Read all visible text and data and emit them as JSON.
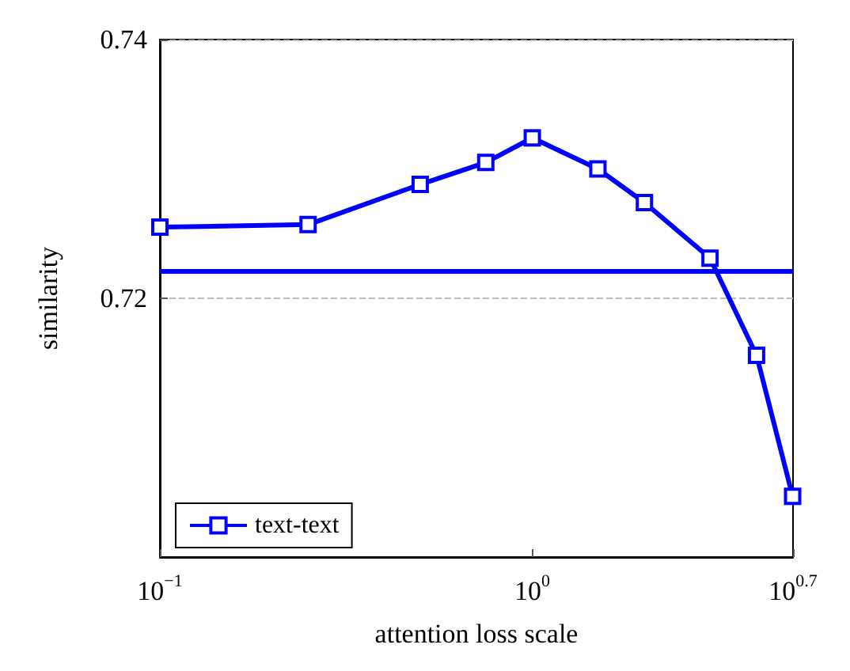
{
  "chart_data": {
    "type": "line",
    "xlabel": "attention loss scale",
    "ylabel": "similarity",
    "x": [
      0.1,
      0.25,
      0.5,
      0.75,
      1,
      1.5,
      2,
      3,
      4,
      5
    ],
    "series": [
      {
        "name": "text-text",
        "color": "#0000ff",
        "values": [
          0.7255,
          0.7257,
          0.7288,
          0.7305,
          0.7324,
          0.73,
          0.7274,
          0.7231,
          0.7156,
          0.7047
        ]
      }
    ],
    "log": "x",
    "xlim": [
      0.1,
      5.0119
    ],
    "xticks": [
      {
        "value": 0.1,
        "label": "10$^{−1}$"
      },
      {
        "value": 1,
        "label": "10$^{0}$"
      },
      {
        "value": 5.0119,
        "label": "10$^{0.7}$"
      }
    ],
    "ylim": [
      0.7,
      0.74
    ],
    "yticks": [
      0.72,
      0.74
    ],
    "ref_lines": [
      {
        "axis": "y",
        "value": 0.7221,
        "color": "#0000ff",
        "line_style": "solid"
      }
    ],
    "grid": "y",
    "legend": "bottom left",
    "marker": "square",
    "line_style": "solid"
  }
}
